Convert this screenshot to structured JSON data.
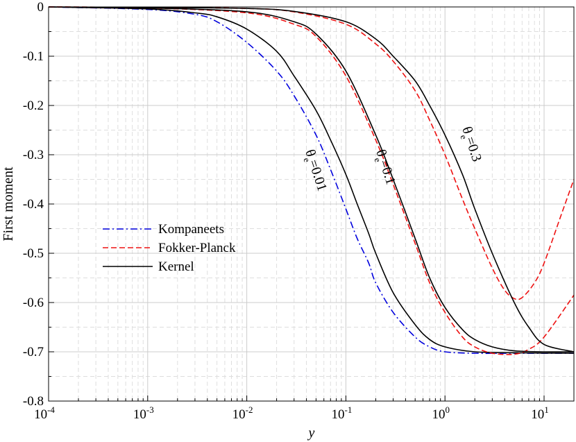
{
  "chart_data": {
    "type": "line",
    "xlabel": "y",
    "ylabel": "First moment",
    "xscale": "log",
    "xlim": [
      0.0001,
      20
    ],
    "ylim": [
      -0.8,
      0
    ],
    "grid": true,
    "legend_position": "center-left",
    "x_ticks": [
      "10",
      "10",
      "10",
      "10",
      "10",
      "10"
    ],
    "x_tick_exponents": [
      "-4",
      "-3",
      "-2",
      "-1",
      "0",
      "1"
    ],
    "y_ticks": [
      "0",
      "-0.1",
      "-0.2",
      "-0.3",
      "-0.4",
      "-0.5",
      "-0.6",
      "-0.7",
      "-0.8"
    ],
    "legend": [
      {
        "name": "Kompaneets",
        "color": "#0000dd",
        "style": "dashdot"
      },
      {
        "name": "Fokker-Planck",
        "color": "#ee1111",
        "style": "dashed"
      },
      {
        "name": "Kernel",
        "color": "#000000",
        "style": "solid"
      }
    ],
    "curve_labels": [
      {
        "base": "θ",
        "sub": "e",
        "value": "=0.01"
      },
      {
        "base": "θ",
        "sub": "e",
        "value": "=0.1"
      },
      {
        "base": "θ",
        "sub": "e",
        "value": "=0.3"
      }
    ],
    "series": [
      {
        "name": "Kompaneets θe=0.01",
        "color": "#0000dd",
        "style": "dashdot",
        "x": [
          0.0001,
          0.001,
          0.003,
          0.005,
          0.01,
          0.02,
          0.03,
          0.05,
          0.07,
          0.1,
          0.13,
          0.17,
          0.2,
          0.3,
          0.5,
          0.7,
          1,
          2,
          5,
          20
        ],
        "y": [
          0,
          -0.005,
          -0.015,
          -0.03,
          -0.072,
          -0.13,
          -0.18,
          -0.26,
          -0.33,
          -0.41,
          -0.47,
          -0.52,
          -0.56,
          -0.62,
          -0.67,
          -0.69,
          -0.7,
          -0.703,
          -0.703,
          -0.703
        ]
      },
      {
        "name": "Kernel θe=0.01",
        "color": "#000000",
        "style": "solid",
        "x": [
          0.0001,
          0.001,
          0.003,
          0.005,
          0.01,
          0.02,
          0.03,
          0.05,
          0.07,
          0.1,
          0.13,
          0.17,
          0.2,
          0.3,
          0.5,
          0.7,
          1,
          2,
          5,
          20
        ],
        "y": [
          0,
          -0.004,
          -0.012,
          -0.02,
          -0.045,
          -0.09,
          -0.14,
          -0.21,
          -0.27,
          -0.34,
          -0.4,
          -0.46,
          -0.5,
          -0.58,
          -0.645,
          -0.675,
          -0.69,
          -0.7,
          -0.702,
          -0.703
        ]
      },
      {
        "name": "Fokker-Planck θe=0.1",
        "color": "#ee1111",
        "style": "dashed",
        "x": [
          0.0001,
          0.001,
          0.01,
          0.03,
          0.05,
          0.1,
          0.2,
          0.3,
          0.5,
          0.7,
          1,
          1.5,
          2,
          3,
          5,
          7,
          10,
          20
        ],
        "y": [
          0,
          -0.002,
          -0.012,
          -0.035,
          -0.06,
          -0.14,
          -0.27,
          -0.36,
          -0.48,
          -0.56,
          -0.62,
          -0.67,
          -0.69,
          -0.703,
          -0.705,
          -0.695,
          -0.67,
          -0.585
        ]
      },
      {
        "name": "Kernel θe=0.1",
        "color": "#000000",
        "style": "solid",
        "x": [
          0.0001,
          0.001,
          0.01,
          0.03,
          0.05,
          0.1,
          0.2,
          0.3,
          0.5,
          0.7,
          1,
          1.5,
          2,
          3,
          5,
          10,
          20
        ],
        "y": [
          0,
          -0.002,
          -0.01,
          -0.03,
          -0.055,
          -0.13,
          -0.26,
          -0.35,
          -0.47,
          -0.55,
          -0.61,
          -0.655,
          -0.675,
          -0.69,
          -0.698,
          -0.7,
          -0.7
        ]
      },
      {
        "name": "Fokker-Planck θe=0.3",
        "color": "#ee1111",
        "style": "dashed",
        "x": [
          0.0001,
          0.001,
          0.01,
          0.03,
          0.1,
          0.2,
          0.3,
          0.5,
          0.7,
          1,
          1.5,
          2,
          3,
          4,
          5,
          6,
          8,
          10,
          15,
          20
        ],
        "y": [
          0,
          -0.001,
          -0.003,
          -0.01,
          -0.035,
          -0.075,
          -0.11,
          -0.17,
          -0.23,
          -0.3,
          -0.39,
          -0.45,
          -0.53,
          -0.575,
          -0.592,
          -0.59,
          -0.56,
          -0.52,
          -0.42,
          -0.35
        ]
      },
      {
        "name": "Kernel θe=0.3",
        "color": "#000000",
        "style": "solid",
        "x": [
          0.0001,
          0.001,
          0.01,
          0.03,
          0.1,
          0.2,
          0.3,
          0.5,
          0.7,
          1,
          1.5,
          2,
          3,
          5,
          7,
          10,
          20
        ],
        "y": [
          0,
          -0.001,
          -0.003,
          -0.009,
          -0.03,
          -0.065,
          -0.1,
          -0.15,
          -0.2,
          -0.26,
          -0.34,
          -0.41,
          -0.5,
          -0.6,
          -0.65,
          -0.685,
          -0.7
        ]
      }
    ]
  }
}
